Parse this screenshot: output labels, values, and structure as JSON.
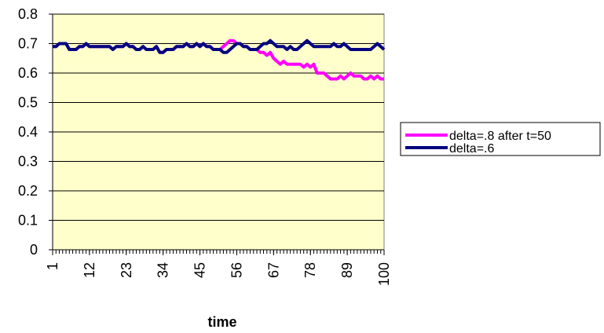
{
  "chart_data": {
    "type": "line",
    "x_label": "time",
    "x": [
      1,
      2,
      3,
      4,
      5,
      6,
      7,
      8,
      9,
      10,
      11,
      12,
      13,
      14,
      15,
      16,
      17,
      18,
      19,
      20,
      21,
      22,
      23,
      24,
      25,
      26,
      27,
      28,
      29,
      30,
      31,
      32,
      33,
      34,
      35,
      36,
      37,
      38,
      39,
      40,
      41,
      42,
      43,
      44,
      45,
      46,
      47,
      48,
      49,
      50,
      51,
      52,
      53,
      54,
      55,
      56,
      57,
      58,
      59,
      60,
      61,
      62,
      63,
      64,
      65,
      66,
      67,
      68,
      69,
      70,
      71,
      72,
      73,
      74,
      75,
      76,
      77,
      78,
      79,
      80,
      81,
      82,
      83,
      84,
      85,
      86,
      87,
      88,
      89,
      90,
      91,
      92,
      93,
      94,
      95,
      96,
      97,
      98,
      99,
      100
    ],
    "series": [
      {
        "name": "delta=.8 after t=50",
        "color": "#ff00ff",
        "values": [
          0.69,
          0.69,
          0.7,
          0.7,
          0.7,
          0.68,
          0.68,
          0.68,
          0.69,
          0.69,
          0.7,
          0.69,
          0.69,
          0.69,
          0.69,
          0.69,
          0.69,
          0.69,
          0.68,
          0.69,
          0.69,
          0.69,
          0.7,
          0.69,
          0.69,
          0.68,
          0.68,
          0.69,
          0.68,
          0.68,
          0.68,
          0.69,
          0.67,
          0.67,
          0.68,
          0.68,
          0.68,
          0.69,
          0.69,
          0.69,
          0.7,
          0.69,
          0.69,
          0.7,
          0.69,
          0.7,
          0.69,
          0.69,
          0.68,
          0.68,
          0.68,
          0.69,
          0.7,
          0.71,
          0.71,
          0.7,
          0.7,
          0.69,
          0.69,
          0.68,
          0.68,
          0.68,
          0.67,
          0.67,
          0.66,
          0.67,
          0.65,
          0.64,
          0.63,
          0.64,
          0.63,
          0.63,
          0.63,
          0.63,
          0.63,
          0.62,
          0.63,
          0.62,
          0.63,
          0.6,
          0.6,
          0.6,
          0.59,
          0.58,
          0.58,
          0.58,
          0.59,
          0.58,
          0.59,
          0.6,
          0.59,
          0.59,
          0.59,
          0.58,
          0.58,
          0.59,
          0.58,
          0.59,
          0.58,
          0.58
        ]
      },
      {
        "name": "delta=.6",
        "color": "#000080",
        "values": [
          0.69,
          0.69,
          0.7,
          0.7,
          0.7,
          0.68,
          0.68,
          0.68,
          0.69,
          0.69,
          0.7,
          0.69,
          0.69,
          0.69,
          0.69,
          0.69,
          0.69,
          0.69,
          0.68,
          0.69,
          0.69,
          0.69,
          0.7,
          0.69,
          0.69,
          0.68,
          0.68,
          0.69,
          0.68,
          0.68,
          0.68,
          0.69,
          0.67,
          0.67,
          0.68,
          0.68,
          0.68,
          0.69,
          0.69,
          0.69,
          0.7,
          0.69,
          0.69,
          0.7,
          0.69,
          0.7,
          0.69,
          0.69,
          0.68,
          0.68,
          0.68,
          0.67,
          0.67,
          0.68,
          0.69,
          0.7,
          0.7,
          0.69,
          0.69,
          0.68,
          0.68,
          0.68,
          0.69,
          0.7,
          0.7,
          0.71,
          0.7,
          0.69,
          0.69,
          0.69,
          0.68,
          0.69,
          0.68,
          0.68,
          0.69,
          0.7,
          0.71,
          0.7,
          0.69,
          0.69,
          0.69,
          0.69,
          0.69,
          0.69,
          0.7,
          0.69,
          0.69,
          0.7,
          0.69,
          0.68,
          0.68,
          0.68,
          0.68,
          0.68,
          0.68,
          0.68,
          0.69,
          0.7,
          0.69,
          0.68
        ]
      }
    ],
    "xlim": [
      1,
      100
    ],
    "xticks": [
      1,
      12,
      23,
      34,
      45,
      56,
      67,
      78,
      89,
      100
    ],
    "ylim": [
      0,
      0.8
    ],
    "yticks": [
      0,
      0.1,
      0.2,
      0.3,
      0.4,
      0.5,
      0.6,
      0.7,
      0.8
    ],
    "grid": true
  }
}
